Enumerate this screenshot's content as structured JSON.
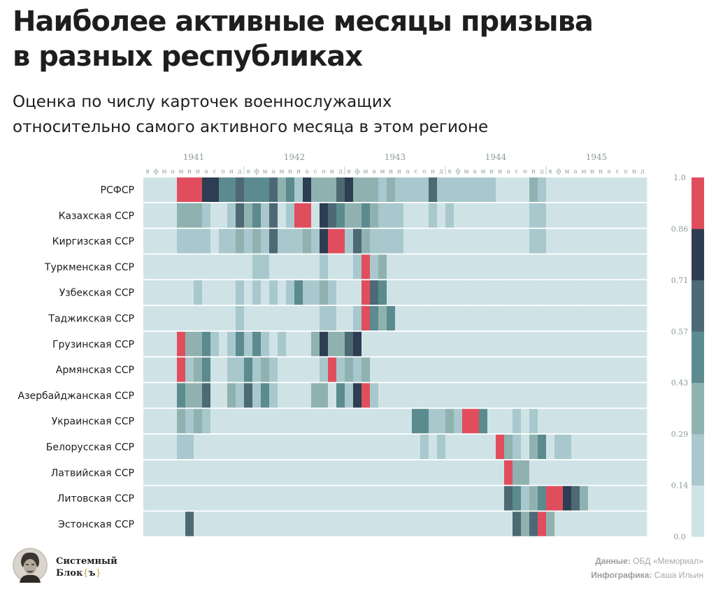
{
  "title_line1": "Наиболее активные месяцы призыва",
  "title_line2": "в разных республиках",
  "subtitle_line1": "Оценка по числу карточек военнослужащих",
  "subtitle_line2": "относительно самого активного месяца в этом регионе",
  "brand": {
    "line1": "Системный",
    "line2": "Блок",
    "brace_open": "{",
    "brace_char": "ъ",
    "brace_close": "}"
  },
  "credits": {
    "data_label": "Данные:",
    "data_value": "ОБД «Мемориал»",
    "infographic_label": "Инфографика:",
    "infographic_value": "Саша Ильин"
  },
  "chart_data": {
    "type": "heatmap",
    "years": [
      "1941",
      "1942",
      "1943",
      "1944",
      "1945"
    ],
    "months": [
      "я",
      "ф",
      "м",
      "а",
      "м",
      "и",
      "и",
      "а",
      "с",
      "о",
      "н",
      "д"
    ],
    "value_scale": "0 = минимум, 1 = самый активный месяц региона",
    "legend_ticks": [
      "1.0",
      "0.86",
      "0.71",
      "0.57",
      "0.43",
      "0.29",
      "0.14",
      "0.0"
    ],
    "colors": [
      "#cfe3e7",
      "#a8c8cd",
      "#8fb2b1",
      "#5b8b8f",
      "#4c6974",
      "#2d3d52",
      "#e04e5e"
    ],
    "rows": [
      {
        "name": "РСФСР",
        "values": [
          0,
          0,
          0,
          0,
          0.95,
          0.95,
          0.95,
          0.8,
          0.8,
          0.5,
          0.45,
          0.65,
          0.55,
          0.5,
          0.45,
          0.7,
          0.4,
          0.55,
          0.25,
          0.85,
          0.3,
          0.35,
          0.3,
          0.7,
          0.8,
          0.4,
          0.4,
          0.4,
          0.2,
          0.3,
          0.2,
          0.2,
          0.2,
          0.2,
          0.65,
          0.2,
          0.2,
          0.2,
          0.2,
          0.2,
          0.2,
          0.2,
          0,
          0,
          0,
          0,
          0.3,
          0.2,
          0,
          0,
          0,
          0,
          0,
          0,
          0,
          0,
          0,
          0,
          0,
          0
        ]
      },
      {
        "name": "Казахская ССР",
        "values": [
          0,
          0,
          0,
          0,
          0.4,
          0.4,
          0.4,
          0.2,
          0,
          0,
          0.2,
          0.6,
          0.3,
          0.5,
          0.2,
          0.6,
          0,
          0.15,
          0.95,
          0.95,
          0,
          0.8,
          0.6,
          0.5,
          0.3,
          0.3,
          0.5,
          0.3,
          0.2,
          0.2,
          0.2,
          0,
          0,
          0,
          0.15,
          0,
          0.15,
          0,
          0,
          0,
          0,
          0,
          0,
          0,
          0,
          0,
          0.2,
          0.2,
          0,
          0,
          0,
          0,
          0,
          0,
          0,
          0,
          0,
          0,
          0,
          0
        ]
      },
      {
        "name": "Киргизская ССР",
        "values": [
          0,
          0,
          0,
          0,
          0.2,
          0.2,
          0.2,
          0.2,
          0,
          0.2,
          0.2,
          0.35,
          0.2,
          0.4,
          0.2,
          0.6,
          0.2,
          0.2,
          0.2,
          0.4,
          0.15,
          0.8,
          0.95,
          0.95,
          0.25,
          0.7,
          0.4,
          0.25,
          0.2,
          0.2,
          0.2,
          0,
          0,
          0,
          0,
          0,
          0,
          0,
          0,
          0,
          0,
          0,
          0,
          0,
          0,
          0,
          0.2,
          0.2,
          0,
          0,
          0,
          0,
          0,
          0,
          0,
          0,
          0,
          0,
          0,
          0
        ]
      },
      {
        "name": "Туркменская ССР",
        "values": [
          0,
          0,
          0,
          0,
          0,
          0,
          0,
          0,
          0,
          0,
          0,
          0,
          0,
          0.25,
          0.2,
          0,
          0,
          0,
          0,
          0,
          0,
          0.15,
          0,
          0,
          0,
          0.15,
          0.95,
          0.2,
          0.35,
          0,
          0,
          0,
          0,
          0,
          0,
          0,
          0,
          0,
          0,
          0,
          0,
          0,
          0,
          0,
          0,
          0,
          0,
          0,
          0,
          0,
          0,
          0,
          0,
          0,
          0,
          0,
          0,
          0,
          0,
          0
        ]
      },
      {
        "name": "Узбекская ССР",
        "values": [
          0,
          0,
          0,
          0,
          0,
          0,
          0.2,
          0,
          0,
          0,
          0,
          0.15,
          0,
          0.2,
          0,
          0.15,
          0,
          0.2,
          0.5,
          0.25,
          0.25,
          0.4,
          0.25,
          0,
          0,
          0,
          0.95,
          0.7,
          0.5,
          0,
          0,
          0,
          0,
          0,
          0,
          0,
          0,
          0,
          0,
          0,
          0,
          0,
          0,
          0,
          0,
          0,
          0,
          0,
          0,
          0,
          0,
          0,
          0,
          0,
          0,
          0,
          0,
          0,
          0,
          0
        ]
      },
      {
        "name": "Таджикская ССР",
        "values": [
          0,
          0,
          0,
          0,
          0,
          0,
          0,
          0,
          0,
          0,
          0,
          0.15,
          0,
          0,
          0,
          0,
          0,
          0,
          0,
          0,
          0,
          0.2,
          0.2,
          0,
          0,
          0.15,
          0.95,
          0.5,
          0.4,
          0.55,
          0,
          0,
          0,
          0,
          0,
          0,
          0,
          0,
          0,
          0,
          0,
          0,
          0,
          0,
          0,
          0,
          0,
          0,
          0,
          0,
          0,
          0,
          0,
          0,
          0,
          0,
          0,
          0,
          0,
          0
        ]
      },
      {
        "name": "Грузинская ССР",
        "values": [
          0,
          0,
          0,
          0,
          0.95,
          0.3,
          0.3,
          0.55,
          0.2,
          0,
          0.2,
          0.5,
          0.2,
          0.5,
          0.15,
          0,
          0.2,
          0,
          0,
          0,
          0.3,
          0.85,
          0.3,
          0.3,
          0.6,
          0.85,
          0,
          0,
          0,
          0,
          0,
          0,
          0,
          0,
          0,
          0,
          0,
          0,
          0,
          0,
          0,
          0,
          0,
          0,
          0,
          0,
          0,
          0,
          0,
          0,
          0,
          0,
          0,
          0,
          0,
          0,
          0,
          0,
          0,
          0
        ]
      },
      {
        "name": "Армянская ССР",
        "values": [
          0,
          0,
          0,
          0,
          0.95,
          0.2,
          0.4,
          0.55,
          0,
          0,
          0.2,
          0.2,
          0.5,
          0.2,
          0.4,
          0.15,
          0,
          0,
          0,
          0,
          0,
          0.2,
          0.95,
          0.15,
          0.4,
          0.2,
          0.4,
          0,
          0,
          0,
          0,
          0,
          0,
          0,
          0,
          0,
          0,
          0,
          0,
          0,
          0,
          0,
          0,
          0,
          0,
          0,
          0,
          0,
          0,
          0,
          0,
          0,
          0,
          0,
          0,
          0,
          0,
          0,
          0,
          0
        ]
      },
      {
        "name": "Азербайджанская ССР",
        "values": [
          0,
          0,
          0,
          0,
          0.55,
          0.3,
          0.35,
          0.6,
          0,
          0,
          0.35,
          0.2,
          0.6,
          0.2,
          0.5,
          0.2,
          0,
          0,
          0,
          0,
          0.35,
          0.35,
          0,
          0.45,
          0.2,
          0.85,
          0.95,
          0.2,
          0,
          0,
          0,
          0,
          0,
          0,
          0,
          0,
          0,
          0,
          0,
          0,
          0,
          0,
          0,
          0,
          0,
          0,
          0,
          0,
          0,
          0,
          0,
          0,
          0,
          0,
          0,
          0,
          0,
          0,
          0,
          0
        ]
      },
      {
        "name": "Украинская ССР",
        "values": [
          0,
          0,
          0,
          0,
          0.3,
          0.15,
          0.35,
          0.2,
          0,
          0,
          0,
          0,
          0,
          0,
          0,
          0,
          0,
          0,
          0,
          0,
          0,
          0,
          0,
          0,
          0,
          0,
          0,
          0,
          0,
          0,
          0,
          0,
          0.55,
          0.55,
          0.25,
          0.25,
          0.35,
          0.2,
          0.95,
          0.95,
          0.5,
          0,
          0,
          0,
          0.2,
          0,
          0.2,
          0,
          0,
          0,
          0,
          0,
          0,
          0,
          0,
          0,
          0,
          0,
          0,
          0
        ]
      },
      {
        "name": "Белорусская ССР",
        "values": [
          0,
          0,
          0,
          0,
          0.2,
          0.2,
          0,
          0,
          0,
          0,
          0,
          0,
          0,
          0,
          0,
          0,
          0,
          0,
          0,
          0,
          0,
          0,
          0,
          0,
          0,
          0,
          0,
          0,
          0,
          0,
          0,
          0,
          0,
          0.2,
          0,
          0.2,
          0,
          0,
          0,
          0,
          0,
          0,
          0.95,
          0.35,
          0.2,
          0,
          0.3,
          0.55,
          0,
          0.2,
          0.2,
          0,
          0,
          0,
          0,
          0,
          0,
          0,
          0,
          0
        ]
      },
      {
        "name": "Латвийская ССР",
        "values": [
          0,
          0,
          0,
          0,
          0,
          0,
          0,
          0,
          0,
          0,
          0,
          0,
          0,
          0,
          0,
          0,
          0,
          0,
          0,
          0,
          0,
          0,
          0,
          0,
          0,
          0,
          0,
          0,
          0,
          0,
          0,
          0,
          0,
          0,
          0,
          0,
          0,
          0,
          0,
          0,
          0,
          0,
          0,
          0.95,
          0.35,
          0.35,
          0,
          0,
          0,
          0,
          0,
          0,
          0,
          0,
          0,
          0,
          0,
          0,
          0,
          0
        ]
      },
      {
        "name": "Литовская ССР",
        "values": [
          0,
          0,
          0,
          0,
          0,
          0,
          0,
          0,
          0,
          0,
          0,
          0,
          0,
          0,
          0,
          0,
          0,
          0,
          0,
          0,
          0,
          0,
          0,
          0,
          0,
          0,
          0,
          0,
          0,
          0,
          0,
          0,
          0,
          0,
          0,
          0,
          0,
          0,
          0,
          0,
          0,
          0,
          0,
          0.7,
          0.55,
          0.2,
          0.3,
          0.55,
          0.95,
          0.95,
          0.85,
          0.6,
          0.3,
          0,
          0,
          0,
          0,
          0,
          0,
          0
        ]
      },
      {
        "name": "Эстонская ССР",
        "values": [
          0,
          0,
          0,
          0,
          0,
          0.6,
          0,
          0,
          0,
          0,
          0,
          0,
          0,
          0,
          0,
          0,
          0,
          0,
          0,
          0,
          0,
          0,
          0,
          0,
          0,
          0,
          0,
          0,
          0,
          0,
          0,
          0,
          0,
          0,
          0,
          0,
          0,
          0,
          0,
          0,
          0,
          0,
          0,
          0,
          0.7,
          0.4,
          0.6,
          0.95,
          0.35,
          0,
          0,
          0,
          0,
          0,
          0,
          0,
          0,
          0,
          0,
          0
        ]
      }
    ]
  }
}
